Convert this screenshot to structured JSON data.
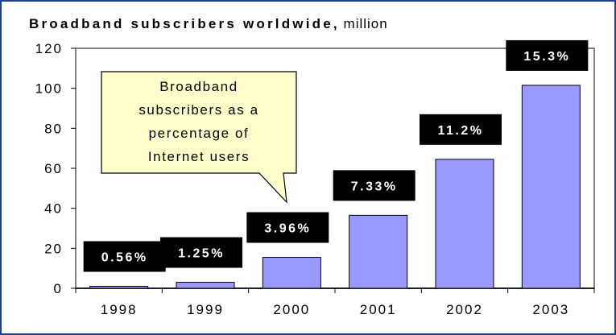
{
  "chart_data": {
    "type": "bar",
    "title": "Broadband subscribers worldwide,",
    "unit": "million",
    "categories": [
      "1998",
      "1999",
      "2000",
      "2001",
      "2002",
      "2003"
    ],
    "values": [
      1,
      3,
      15.5,
      36.5,
      64.5,
      101.5
    ],
    "data_labels": [
      "0.56%",
      "1.25%",
      "3.96%",
      "7.33%",
      "11.2%",
      "15.3%"
    ],
    "yticks": [
      "0",
      "20",
      "40",
      "60",
      "80",
      "100",
      "120"
    ],
    "ylim": [
      0,
      120
    ],
    "grid": false,
    "legend": "none",
    "bar_color": "#9999ff",
    "label_bg_color": "#000000",
    "callout": {
      "lines": [
        "Broadband",
        "subscribers as a",
        "percentage of",
        "Internet users"
      ],
      "fill": "#ffffcc"
    }
  }
}
